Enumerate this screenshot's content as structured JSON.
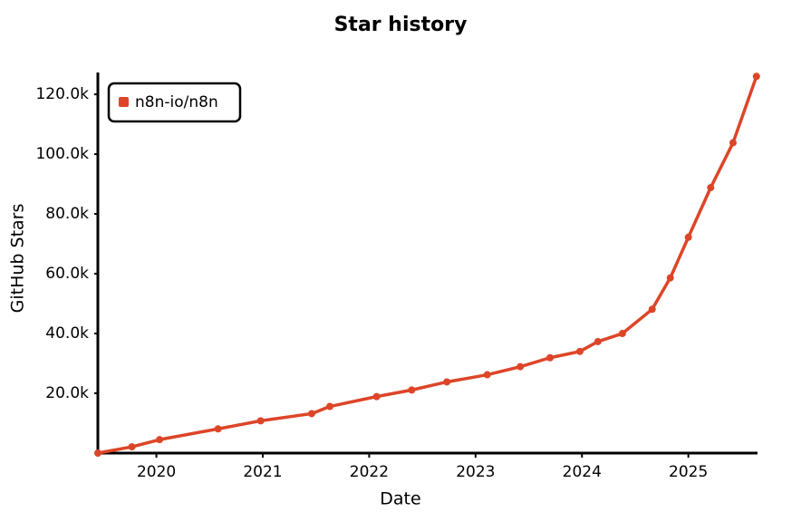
{
  "chart_data": {
    "type": "line",
    "title": "Star history",
    "x_label": "Date",
    "y_label": "GitHub Stars",
    "series": [
      {
        "name": "n8n-io/n8n",
        "color": "#dd4528",
        "x": [
          2019.45,
          2019.77,
          2020.03,
          2020.58,
          2020.98,
          2021.46,
          2021.63,
          2022.07,
          2022.4,
          2022.73,
          2023.11,
          2023.42,
          2023.7,
          2023.98,
          2024.15,
          2024.38,
          2024.66,
          2024.83,
          2025.0,
          2025.21,
          2025.42,
          2025.64
        ],
        "values": [
          0,
          2100,
          4500,
          8100,
          10800,
          13200,
          15600,
          18900,
          21100,
          23800,
          26200,
          28900,
          31900,
          34000,
          37300,
          40000,
          48100,
          58600,
          72200,
          88800,
          103800,
          126000
        ]
      }
    ],
    "xlim": [
      2019.45,
      2025.65
    ],
    "xticks": [
      2020,
      2021,
      2022,
      2023,
      2024,
      2025
    ],
    "ylim": [
      0,
      127000
    ],
    "yticks": [
      {
        "value": 20000,
        "label": "20.0k"
      },
      {
        "value": 40000,
        "label": "40.0k"
      },
      {
        "value": 60000,
        "label": "60.0k"
      },
      {
        "value": 80000,
        "label": "80.0k"
      },
      {
        "value": 100000,
        "label": "100.0k"
      },
      {
        "value": 120000,
        "label": "120.0k"
      }
    ],
    "legend": "top-left",
    "grid": false
  }
}
